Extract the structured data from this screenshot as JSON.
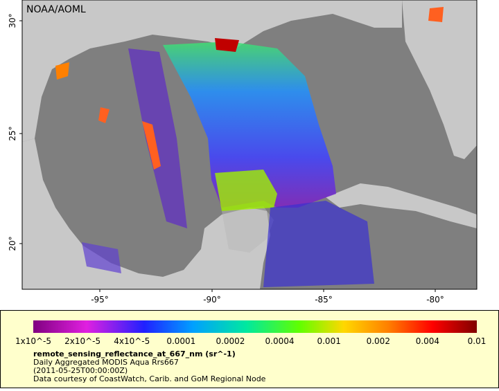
{
  "map": {
    "credit": "NOAA/AOML",
    "lat_ticks": [
      "30°",
      "25°",
      "20°"
    ],
    "lon_ticks": [
      "-95°",
      "-90°",
      "-85°",
      "-80°"
    ]
  },
  "legend": {
    "colorbar_labels": [
      "1x10^-5",
      "2x10^-5",
      "4x10^-5",
      "0.0001",
      "0.0002",
      "0.0004",
      "0.001",
      "0.002",
      "0.004",
      "0.01"
    ],
    "variable": "remote_sensing_reflectance_at_667_nm (sr^-1)",
    "lines": [
      "Daily Aggregated MODIS Aqua Rrs667",
      "(2011-05-25T00:00:00Z)",
      "Data courtesy of CoastWatch, Carib. and GoM Regional Node"
    ]
  }
}
